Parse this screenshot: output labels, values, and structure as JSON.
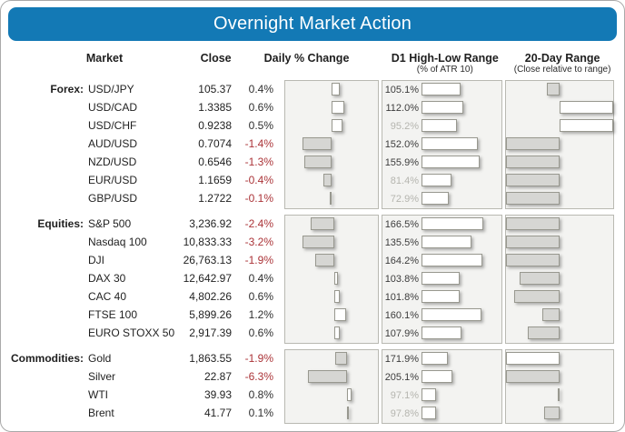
{
  "title": "Overnight Market Action",
  "colors": {
    "header_bg": "#1379b5",
    "negative_text": "#ab3438",
    "positive_text": "#2e2e2e",
    "bar_white": "#ffffff",
    "bar_gray": "#d6d6d3",
    "chart_bg": "#f3f3f1",
    "chart_border": "#b9b9b2",
    "muted_label": "#b5b5af"
  },
  "columns": {
    "market": "Market",
    "close": "Close",
    "daily": "Daily % Change",
    "d1": "D1 High-Low Range",
    "d1_sub": "(% of ATR 10)",
    "range20": "20-Day Range",
    "range20_sub": "(Close relative to range)"
  },
  "chart_data": {
    "type": "table",
    "title": "Overnight Market Action",
    "description": "Per-row horizontal bar charts: Daily % Change (diverging bars, white=positive right, gray=negative left), D1 High-Low Range as % of ATR 10 (left-anchored white bars, muted label when under 100%), 20-Day Range close-relative-to-range (bars pivot at 50% midpoint; range20_pos is signed fraction of half-range).",
    "groups": [
      {
        "label": "Forex:",
        "daily_axis": [
          -2.2,
          2.2
        ],
        "d1_axis_max": 215,
        "rows": [
          {
            "market": "USD/JPY",
            "close": "105.37",
            "daily_pct": 0.4,
            "daily_label": "0.4%",
            "d1_pct": 105.1,
            "d1_label": "105.1%",
            "range20_pos": -0.23,
            "range20_color": "gray"
          },
          {
            "market": "USD/CAD",
            "close": "1.3385",
            "daily_pct": 0.6,
            "daily_label": "0.6%",
            "d1_pct": 112.0,
            "d1_label": "112.0%",
            "range20_pos": 1.0,
            "range20_color": "white"
          },
          {
            "market": "USD/CHF",
            "close": "0.9238",
            "daily_pct": 0.5,
            "daily_label": "0.5%",
            "d1_pct": 95.2,
            "d1_label": "95.2%",
            "range20_pos": 1.0,
            "range20_color": "white"
          },
          {
            "market": "AUD/USD",
            "close": "0.7074",
            "daily_pct": -1.4,
            "daily_label": "-1.4%",
            "d1_pct": 152.0,
            "d1_label": "152.0%",
            "range20_pos": -1.0,
            "range20_color": "gray"
          },
          {
            "market": "NZD/USD",
            "close": "0.6546",
            "daily_pct": -1.3,
            "daily_label": "-1.3%",
            "d1_pct": 155.9,
            "d1_label": "155.9%",
            "range20_pos": -1.0,
            "range20_color": "gray"
          },
          {
            "market": "EUR/USD",
            "close": "1.1659",
            "daily_pct": -0.4,
            "daily_label": "-0.4%",
            "d1_pct": 81.4,
            "d1_label": "81.4%",
            "range20_pos": -1.0,
            "range20_color": "gray"
          },
          {
            "market": "GBP/USD",
            "close": "1.2722",
            "daily_pct": -0.1,
            "daily_label": "-0.1%",
            "d1_pct": 72.9,
            "d1_label": "72.9%",
            "range20_pos": -1.0,
            "range20_color": "gray"
          }
        ]
      },
      {
        "label": "Equities:",
        "daily_axis": [
          -5,
          4.5
        ],
        "d1_axis_max": 215,
        "rows": [
          {
            "market": "S&P 500",
            "close": "3,236.92",
            "daily_pct": -2.4,
            "daily_label": "-2.4%",
            "d1_pct": 166.5,
            "d1_label": "166.5%",
            "range20_pos": -1.0,
            "range20_color": "gray"
          },
          {
            "market": "Nasdaq 100",
            "close": "10,833.33",
            "daily_pct": -3.2,
            "daily_label": "-3.2%",
            "d1_pct": 135.5,
            "d1_label": "135.5%",
            "range20_pos": -1.0,
            "range20_color": "gray"
          },
          {
            "market": "DJI",
            "close": "26,763.13",
            "daily_pct": -1.9,
            "daily_label": "-1.9%",
            "d1_pct": 164.2,
            "d1_label": "164.2%",
            "range20_pos": -1.0,
            "range20_color": "gray"
          },
          {
            "market": "DAX 30",
            "close": "12,642.97",
            "daily_pct": 0.4,
            "daily_label": "0.4%",
            "d1_pct": 103.8,
            "d1_label": "103.8%",
            "range20_pos": -0.75,
            "range20_color": "gray"
          },
          {
            "market": "CAC 40",
            "close": "4,802.26",
            "daily_pct": 0.6,
            "daily_label": "0.6%",
            "d1_pct": 101.8,
            "d1_label": "101.8%",
            "range20_pos": -0.85,
            "range20_color": "gray"
          },
          {
            "market": "FTSE 100",
            "close": "5,899.26",
            "daily_pct": 1.2,
            "daily_label": "1.2%",
            "d1_pct": 160.1,
            "d1_label": "160.1%",
            "range20_pos": -0.33,
            "range20_color": "gray"
          },
          {
            "market": "EURO STOXX 50",
            "close": "2,917.39",
            "daily_pct": 0.6,
            "daily_label": "0.6%",
            "d1_pct": 107.9,
            "d1_label": "107.9%",
            "range20_pos": -0.6,
            "range20_color": "gray"
          }
        ]
      },
      {
        "label": "Commodities:",
        "daily_axis": [
          -10,
          5
        ],
        "d1_axis_max": 525,
        "rows": [
          {
            "market": "Gold",
            "close": "1,863.55",
            "daily_pct": -1.9,
            "daily_label": "-1.9%",
            "d1_pct": 171.9,
            "d1_label": "171.9%",
            "range20_pos": -1.0,
            "range20_color": "white"
          },
          {
            "market": "Silver",
            "close": "22.87",
            "daily_pct": -6.3,
            "daily_label": "-6.3%",
            "d1_pct": 205.1,
            "d1_label": "205.1%",
            "range20_pos": -1.0,
            "range20_color": "gray"
          },
          {
            "market": "WTI",
            "close": "39.93",
            "daily_pct": 0.8,
            "daily_label": "0.8%",
            "d1_pct": 97.1,
            "d1_label": "97.1%",
            "range20_pos": -0.04,
            "range20_color": "gray"
          },
          {
            "market": "Brent",
            "close": "41.77",
            "daily_pct": 0.1,
            "daily_label": "0.1%",
            "d1_pct": 97.8,
            "d1_label": "97.8%",
            "range20_pos": -0.28,
            "range20_color": "gray"
          }
        ]
      }
    ]
  }
}
